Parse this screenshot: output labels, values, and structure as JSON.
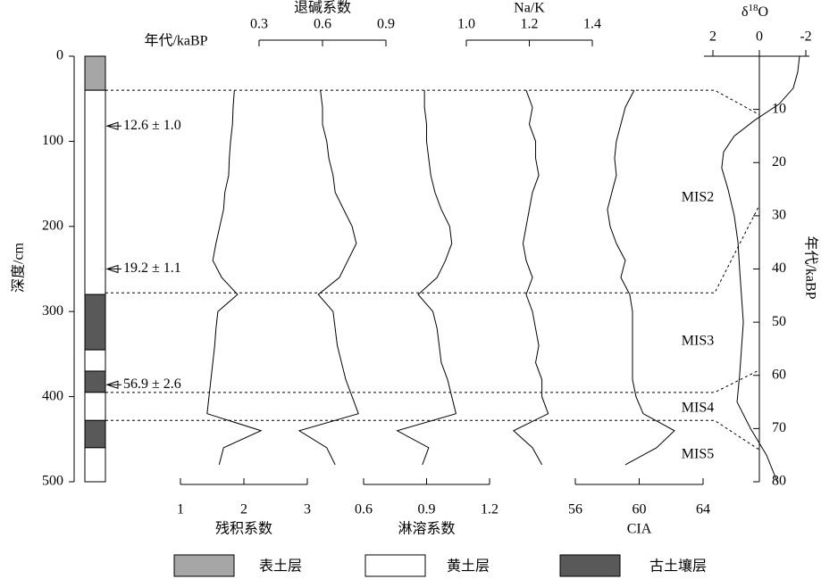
{
  "depth_axis": {
    "label": "深度/cm",
    "ylim": [
      0,
      500
    ],
    "yticks": [
      0,
      100,
      200,
      300,
      400,
      500
    ]
  },
  "age_column_label": "年代/kaBP",
  "lithology": {
    "units": [
      {
        "name": "表土层",
        "color": "#a6a6a6"
      },
      {
        "name": "黄土层",
        "color": "#ffffff"
      },
      {
        "name": "古土壤层",
        "color": "#595959"
      }
    ],
    "layers": [
      {
        "top": 0,
        "bottom": 40,
        "unit": 0
      },
      {
        "top": 40,
        "bottom": 280,
        "unit": 1
      },
      {
        "top": 280,
        "bottom": 345,
        "unit": 2
      },
      {
        "top": 345,
        "bottom": 370,
        "unit": 1
      },
      {
        "top": 370,
        "bottom": 395,
        "unit": 2
      },
      {
        "top": 395,
        "bottom": 428,
        "unit": 1
      },
      {
        "top": 428,
        "bottom": 460,
        "unit": 2
      },
      {
        "top": 460,
        "bottom": 500,
        "unit": 1
      }
    ]
  },
  "dates": [
    {
      "depth": 82,
      "label": "12.6 ± 1.0"
    },
    {
      "depth": 250,
      "label": "19.2 ± 1.1"
    },
    {
      "depth": 386,
      "label": "56.9 ± 2.6"
    }
  ],
  "depths": [
    40,
    60,
    80,
    100,
    120,
    140,
    160,
    180,
    200,
    220,
    240,
    260,
    280,
    300,
    320,
    340,
    360,
    380,
    400,
    420,
    440,
    460,
    480
  ],
  "proxies": [
    {
      "name": "残积系数",
      "axis": "bottom",
      "xlim": [
        1,
        3
      ],
      "xticks": [
        1,
        2,
        3
      ],
      "values": [
        1.85,
        1.83,
        1.82,
        1.79,
        1.77,
        1.76,
        1.7,
        1.68,
        1.62,
        1.56,
        1.51,
        1.65,
        1.9,
        1.59,
        1.56,
        1.54,
        1.51,
        1.48,
        1.45,
        1.42,
        2.27,
        1.68,
        1.61
      ]
    },
    {
      "name": "退碱系数",
      "axis": "top",
      "xlim": [
        0.3,
        0.9
      ],
      "xticks": [
        0.3,
        0.6,
        0.9
      ],
      "values": [
        0.59,
        0.6,
        0.6,
        0.62,
        0.63,
        0.65,
        0.66,
        0.7,
        0.74,
        0.76,
        0.72,
        0.68,
        0.58,
        0.65,
        0.66,
        0.67,
        0.69,
        0.71,
        0.74,
        0.77,
        0.49,
        0.62,
        0.66
      ]
    },
    {
      "name": "淋溶系数",
      "axis": "bottom",
      "xlim": [
        0.6,
        1.2
      ],
      "xticks": [
        0.6,
        0.9,
        1.2
      ],
      "values": [
        0.89,
        0.89,
        0.9,
        0.9,
        0.91,
        0.92,
        0.94,
        0.97,
        1.01,
        1.02,
        0.99,
        0.95,
        0.86,
        0.93,
        0.95,
        0.96,
        0.97,
        1.0,
        1.02,
        1.04,
        0.76,
        0.91,
        0.88
      ]
    },
    {
      "name": "Na/K",
      "axis": "top",
      "xlim": [
        1,
        1.4
      ],
      "xticks": [
        {
          "value": 1,
          "label": "1.0"
        },
        1.2,
        1.4
      ],
      "values": [
        1.19,
        1.21,
        1.2,
        1.22,
        1.22,
        1.23,
        1.21,
        1.2,
        1.19,
        1.18,
        1.19,
        1.21,
        1.19,
        1.21,
        1.22,
        1.23,
        1.22,
        1.24,
        1.24,
        1.26,
        1.15,
        1.21,
        1.24
      ]
    },
    {
      "name": "CIA",
      "axis": "bottom",
      "xlim": [
        56,
        64
      ],
      "xticks": [
        56,
        60,
        64
      ],
      "values": [
        59.69,
        59.13,
        58.85,
        58.57,
        58.46,
        58.57,
        58.29,
        58.01,
        58.18,
        58.57,
        59.13,
        58.85,
        59.41,
        59.58,
        59.58,
        59.58,
        59.58,
        59.58,
        59.8,
        60.25,
        62.21,
        61.09,
        59.13
      ]
    }
  ],
  "boundaries": [
    {
      "depth": 40,
      "age": 11
    },
    {
      "depth": 278,
      "age": 28
    },
    {
      "depth": 395,
      "age": 59
    },
    {
      "depth": 428,
      "age": 74
    }
  ],
  "stages": [
    "MIS2",
    "MIS3",
    "MIS4",
    "MIS5"
  ],
  "isotope": {
    "label": [
      "δ",
      "18",
      "O"
    ],
    "xlim": [
      2,
      -2
    ],
    "xticks": [
      2,
      0,
      -2
    ],
    "ages": [
      0,
      3,
      6,
      9,
      12,
      15,
      18,
      21,
      25,
      30,
      35,
      40,
      45,
      50,
      55,
      60,
      65,
      70,
      75,
      80
    ],
    "values": [
      -1.73,
      -1.65,
      -1.46,
      -0.85,
      0.19,
      1.08,
      1.54,
      1.62,
      1.35,
      1.08,
      0.92,
      0.85,
      0.77,
      0.69,
      0.77,
      0.85,
      0.96,
      0.38,
      -0.31,
      -0.77
    ],
    "age_axis": {
      "label": "年代/kaBP",
      "ylim": [
        0,
        80
      ],
      "yticks": [
        10,
        20,
        30,
        40,
        50,
        60,
        70,
        80
      ]
    }
  }
}
